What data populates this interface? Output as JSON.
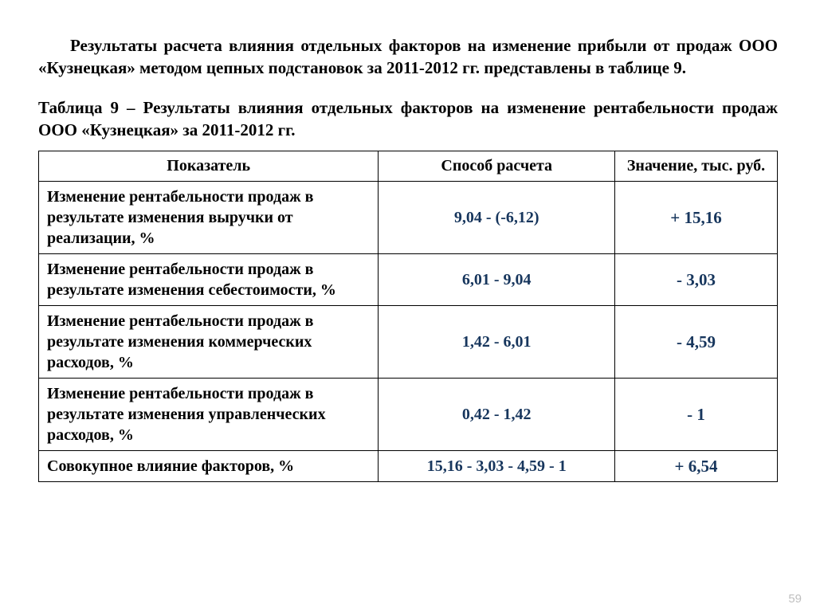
{
  "colors": {
    "text_black": "#000000",
    "value_blue": "#17365d",
    "pagenum_gray": "#bfbfbf",
    "background": "#ffffff"
  },
  "intro_paragraph": "Результаты расчета влияния отдельных факторов на изменение прибыли от продаж ООО «Кузнецкая» методом цепных подстановок за 2011-2012 гг. представлены в таблице 9.",
  "table_caption": "Таблица 9 – Результаты влияния отдельных факторов на изменение рентабельности продаж ООО «Кузнецкая» за 2011-2012 гг.",
  "table": {
    "headers": {
      "col1": "Показатель",
      "col2": "Способ расчета",
      "col3": "Значение, тыс. руб."
    },
    "rows": [
      {
        "label": "Изменение рентабельности продаж в результате изменения выручки от реализации, %",
        "calc": "9,04 - (-6,12)",
        "value": "+ 15,16"
      },
      {
        "label": "Изменение рентабельности продаж в результате изменения себестоимости, %",
        "calc": "6,01 - 9,04",
        "value": "- 3,03"
      },
      {
        "label": "Изменение рентабельности продаж в результате изменения коммерческих расходов, %",
        "calc": "1,42 - 6,01",
        "value": "- 4,59"
      },
      {
        "label": "Изменение рентабельности продаж в результате изменения управленческих расходов,  %",
        "calc": "0,42 - 1,42",
        "value": "- 1"
      },
      {
        "label": "Совокупное влияние факторов,  %",
        "calc": "15,16 - 3,03 - 4,59 - 1",
        "value": "+ 6,54"
      }
    ]
  },
  "page_number": "59"
}
